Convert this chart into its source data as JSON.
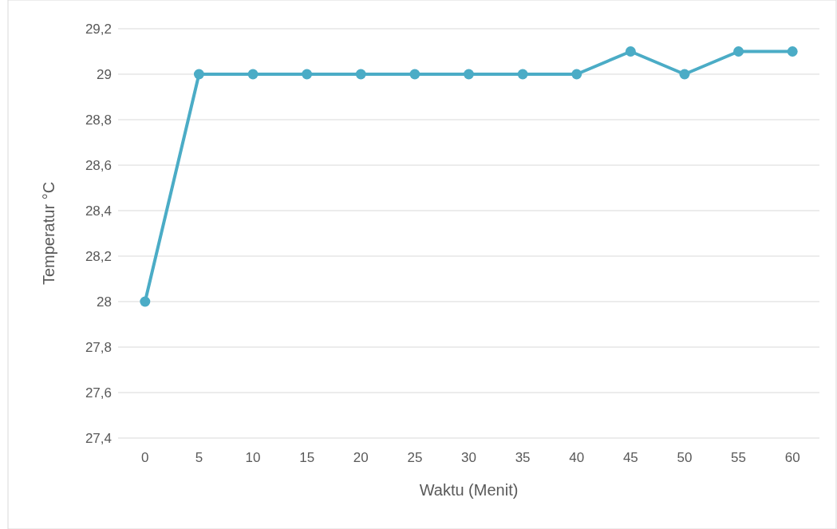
{
  "chart_data": {
    "type": "line",
    "xlabel": "Waktu (Menit)",
    "ylabel": "Temperatur °C",
    "categories": [
      "0",
      "5",
      "10",
      "15",
      "20",
      "25",
      "30",
      "35",
      "40",
      "45",
      "50",
      "55",
      "60"
    ],
    "series": [
      {
        "color": "#4bacc6",
        "values": [
          28,
          29,
          29,
          29,
          29,
          29,
          29,
          29,
          29,
          29.1,
          29,
          29.1,
          29.1
        ]
      }
    ],
    "ylim": [
      27.4,
      29.2
    ],
    "yticks": [
      {
        "value": 27.4,
        "label": "27,4"
      },
      {
        "value": 27.6,
        "label": "27,6"
      },
      {
        "value": 27.8,
        "label": "27,8"
      },
      {
        "value": 28,
        "label": "28"
      },
      {
        "value": 28.2,
        "label": "28,2"
      },
      {
        "value": 28.4,
        "label": "28,4"
      },
      {
        "value": 28.6,
        "label": "28,6"
      },
      {
        "value": 28.8,
        "label": "28,8"
      },
      {
        "value": 29,
        "label": "29"
      },
      {
        "value": 29.2,
        "label": "29,2"
      }
    ],
    "grid": "y",
    "marker": "circle",
    "line_style": "solid"
  }
}
